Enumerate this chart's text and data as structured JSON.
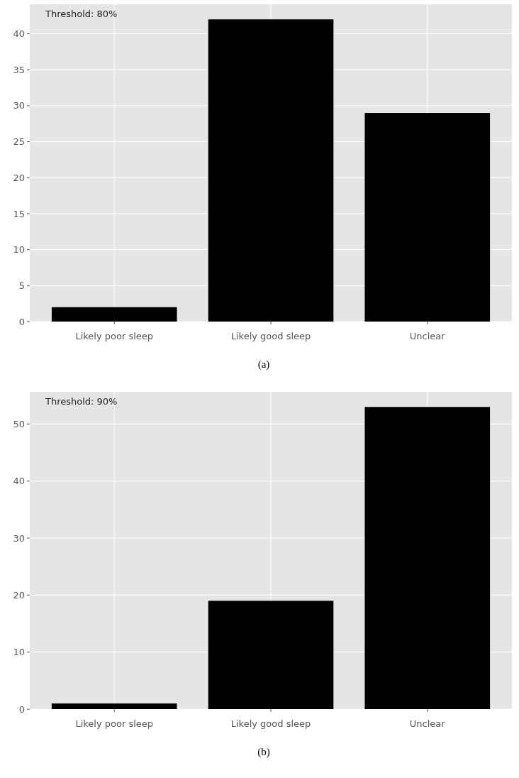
{
  "chart_data": [
    {
      "type": "bar",
      "categories": [
        "Likely poor sleep",
        "Likely good sleep",
        "Unclear"
      ],
      "values": [
        2,
        42,
        29
      ],
      "color": "#000000",
      "ylim": [
        0,
        44.1
      ],
      "yticks": [
        0,
        5,
        10,
        15,
        20,
        25,
        30,
        35,
        40
      ],
      "grid": true,
      "annotations": [
        "Threshold: 80%",
        "(a)"
      ]
    },
    {
      "type": "bar",
      "categories": [
        "Likely poor sleep",
        "Likely good sleep",
        "Unclear"
      ],
      "values": [
        1,
        19,
        53
      ],
      "color": "#000000",
      "ylim": [
        0,
        55.65
      ],
      "yticks": [
        0,
        10,
        20,
        30,
        40,
        50
      ],
      "grid": true,
      "annotations": [
        "Threshold: 90%",
        "(b)"
      ]
    }
  ]
}
